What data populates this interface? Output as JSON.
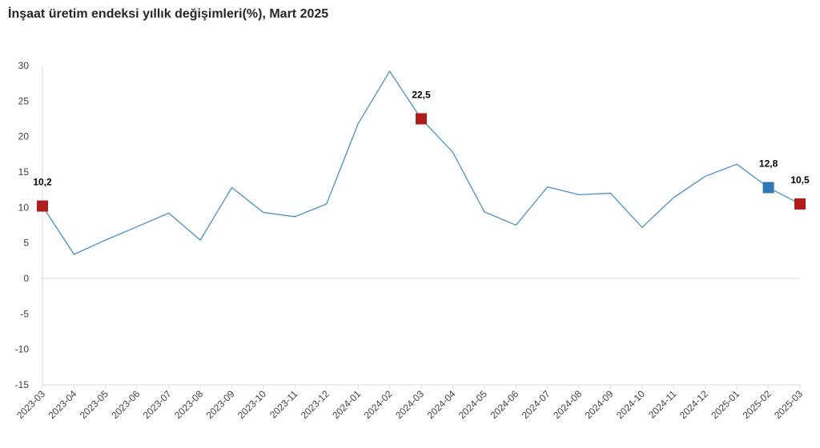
{
  "title": "İnşaat üretim endeksi yıllık değişimleri(%), Mart 2025",
  "chart_data": {
    "type": "line",
    "x": [
      "2023-03",
      "2023-04",
      "2023-05",
      "2023-06",
      "2023-07",
      "2023-08",
      "2023-09",
      "2023-10",
      "2023-11",
      "2023-12",
      "2024-01",
      "2024-02",
      "2024-03",
      "2024-04",
      "2024-05",
      "2024-06",
      "2024-07",
      "2024-08",
      "2024-09",
      "2024-10",
      "2024-11",
      "2024-12",
      "2025-01",
      "2025-02",
      "2025-03"
    ],
    "series": [
      {
        "values": [
          10.2,
          3.4,
          5.4,
          7.3,
          9.2,
          5.4,
          12.8,
          9.3,
          8.7,
          10.5,
          21.8,
          29.2,
          22.5,
          17.8,
          9.4,
          7.5,
          12.9,
          11.8,
          12.0,
          7.2,
          11.4,
          14.4,
          16.1,
          12.8,
          10.5
        ],
        "color": "#4a8fc4"
      }
    ],
    "ylim": [
      -15,
      30
    ],
    "yticks": [
      30,
      25,
      20,
      15,
      10,
      5,
      0,
      -5,
      -10,
      -15
    ],
    "grid": false,
    "highlighted_points": [
      {
        "index": 0,
        "label": "10,2",
        "color": "#b01c1c"
      },
      {
        "index": 12,
        "label": "22,5",
        "color": "#b01c1c"
      },
      {
        "index": 23,
        "label": "12,8",
        "color": "#2e78b8"
      },
      {
        "index": 24,
        "label": "10,5",
        "color": "#b01c1c"
      }
    ],
    "axis_color": "#d9d9d9",
    "tick_label_color": "#404040"
  }
}
